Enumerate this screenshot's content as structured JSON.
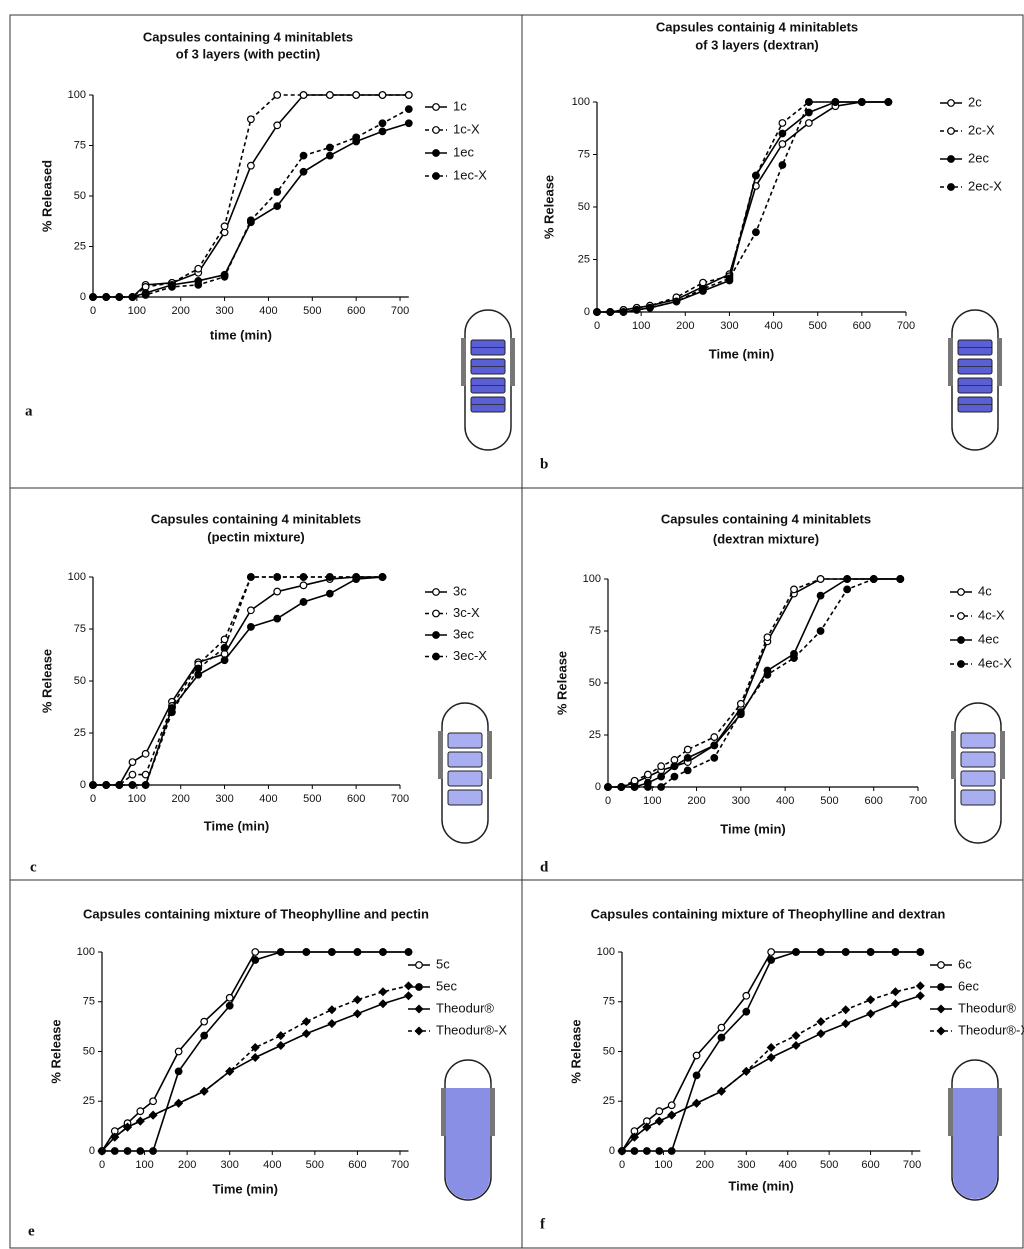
{
  "chart_data": [
    {
      "type": "line",
      "title": [
        "Capsules containing 4 minitablets",
        "of 3 layers (with pectin)"
      ],
      "x_label": "time (min)",
      "y_label": "% Released",
      "annotation": "a",
      "xlim": [
        0,
        720
      ],
      "ylim": [
        0,
        100
      ],
      "xticks": [
        0,
        100,
        200,
        300,
        400,
        500,
        600,
        700
      ],
      "yticks": [
        0,
        25,
        50,
        75,
        100
      ],
      "x": [
        0,
        30,
        60,
        90,
        120,
        180,
        240,
        300,
        360,
        420,
        480,
        540,
        600,
        660,
        720
      ],
      "series": [
        {
          "name": "1c",
          "color": "#000",
          "marker": "open-circle",
          "dashed": false,
          "values": [
            0,
            0,
            0,
            0,
            6,
            7,
            12,
            32,
            65,
            85,
            100,
            100,
            100,
            100,
            100
          ]
        },
        {
          "name": "1c-X",
          "color": "#000",
          "marker": "open-circle",
          "dashed": true,
          "values": [
            0,
            0,
            0,
            0,
            5,
            7,
            14,
            35,
            88,
            100,
            100,
            100,
            100,
            100,
            100
          ]
        },
        {
          "name": "1ec",
          "color": "#000",
          "marker": "filled-circle",
          "dashed": false,
          "values": [
            0,
            0,
            0,
            0,
            2,
            6,
            8,
            11,
            37,
            45,
            62,
            70,
            77,
            82,
            86
          ]
        },
        {
          "name": "1ec-X",
          "color": "#000",
          "marker": "filled-circle",
          "dashed": true,
          "values": [
            0,
            0,
            0,
            0,
            1,
            5,
            6,
            10,
            38,
            52,
            70,
            74,
            79,
            86,
            93
          ]
        }
      ]
    },
    {
      "type": "line",
      "title": [
        "Capsules containig 4 minitablets",
        "of 3 layers (dextran)"
      ],
      "x_label": "Time (min)",
      "y_label": "% Release",
      "annotation": "b",
      "xlim": [
        0,
        700
      ],
      "ylim": [
        0,
        100
      ],
      "xticks": [
        0,
        100,
        200,
        300,
        400,
        500,
        600,
        700
      ],
      "yticks": [
        0,
        25,
        50,
        75,
        100
      ],
      "x": [
        0,
        30,
        60,
        90,
        120,
        180,
        240,
        300,
        360,
        420,
        480,
        540,
        600,
        660
      ],
      "series": [
        {
          "name": "2c",
          "color": "#000",
          "marker": "open-circle",
          "dashed": false,
          "values": [
            0,
            0,
            1,
            2,
            3,
            6,
            12,
            18,
            60,
            80,
            90,
            98,
            100,
            100
          ]
        },
        {
          "name": "2c-X",
          "color": "#000",
          "marker": "open-circle",
          "dashed": true,
          "values": [
            0,
            0,
            1,
            2,
            3,
            7,
            14,
            17,
            65,
            90,
            100,
            100,
            100,
            100
          ]
        },
        {
          "name": "2ec",
          "color": "#000",
          "marker": "filled-circle",
          "dashed": false,
          "values": [
            0,
            0,
            0,
            1,
            2,
            5,
            10,
            15,
            65,
            85,
            95,
            100,
            100,
            100
          ]
        },
        {
          "name": "2ec-X",
          "color": "#000",
          "marker": "filled-circle",
          "dashed": true,
          "values": [
            0,
            0,
            0,
            1,
            2,
            5,
            11,
            16,
            38,
            70,
            100,
            100,
            100,
            100
          ]
        }
      ]
    },
    {
      "type": "line",
      "title": [
        "Capsules containing 4 minitablets",
        "(pectin mixture)"
      ],
      "x_label": "Time (min)",
      "y_label": "% Release",
      "annotation": "c",
      "xlim": [
        0,
        700
      ],
      "ylim": [
        0,
        100
      ],
      "xticks": [
        0,
        100,
        200,
        300,
        400,
        500,
        600,
        700
      ],
      "yticks": [
        0,
        25,
        50,
        75,
        100
      ],
      "x": [
        0,
        30,
        60,
        90,
        120,
        180,
        240,
        300,
        360,
        420,
        480,
        540,
        600,
        660
      ],
      "series": [
        {
          "name": "3c",
          "color": "#000",
          "marker": "open-circle",
          "dashed": false,
          "values": [
            0,
            0,
            0,
            11,
            15,
            40,
            59,
            63,
            84,
            93,
            96,
            99,
            100,
            100
          ]
        },
        {
          "name": "3c-X",
          "color": "#000",
          "marker": "open-circle",
          "dashed": true,
          "values": [
            0,
            0,
            0,
            5,
            5,
            38,
            58,
            70,
            100,
            100,
            100,
            100,
            100,
            100
          ]
        },
        {
          "name": "3ec",
          "color": "#000",
          "marker": "filled-circle",
          "dashed": false,
          "values": [
            0,
            0,
            0,
            0,
            0,
            37,
            53,
            60,
            76,
            80,
            88,
            92,
            99,
            100
          ]
        },
        {
          "name": "3ec-X",
          "color": "#000",
          "marker": "filled-circle",
          "dashed": true,
          "values": [
            0,
            0,
            0,
            0,
            0,
            35,
            56,
            66,
            100,
            100,
            100,
            100,
            100,
            100
          ]
        }
      ]
    },
    {
      "type": "line",
      "title": [
        "Capsules containing 4 minitablets",
        "(dextran mixture)"
      ],
      "x_label": "Time (min)",
      "y_label": "% Release",
      "annotation": "d",
      "xlim": [
        0,
        700
      ],
      "ylim": [
        0,
        100
      ],
      "xticks": [
        0,
        100,
        200,
        300,
        400,
        500,
        600,
        700
      ],
      "yticks": [
        0,
        25,
        50,
        75,
        100
      ],
      "x": [
        0,
        30,
        60,
        90,
        120,
        150,
        180,
        240,
        300,
        360,
        420,
        480,
        540,
        600,
        660
      ],
      "series": [
        {
          "name": "4c",
          "color": "#000",
          "marker": "open-circle",
          "dashed": false,
          "values": [
            0,
            0,
            2,
            5,
            8,
            10,
            12,
            20,
            38,
            70,
            93,
            100,
            100,
            100,
            100
          ]
        },
        {
          "name": "4c-X",
          "color": "#000",
          "marker": "open-circle",
          "dashed": true,
          "values": [
            0,
            0,
            3,
            6,
            10,
            13,
            18,
            24,
            40,
            72,
            95,
            100,
            100,
            100,
            100
          ]
        },
        {
          "name": "4ec",
          "color": "#000",
          "marker": "filled-circle",
          "dashed": false,
          "values": [
            0,
            0,
            0,
            2,
            5,
            10,
            14,
            20,
            35,
            56,
            64,
            92,
            100,
            100,
            100
          ]
        },
        {
          "name": "4ec-X",
          "color": "#000",
          "marker": "filled-circle",
          "dashed": true,
          "values": [
            0,
            0,
            0,
            0,
            0,
            5,
            8,
            14,
            36,
            54,
            62,
            75,
            95,
            100,
            100
          ]
        }
      ]
    },
    {
      "type": "line",
      "title": [
        "Capsules containing mixture of Theophylline and pectin"
      ],
      "x_label": "Time (min)",
      "y_label": "% Release",
      "annotation": "e",
      "xlim": [
        0,
        720
      ],
      "ylim": [
        0,
        100
      ],
      "xticks": [
        0,
        100,
        200,
        300,
        400,
        500,
        600,
        700
      ],
      "yticks": [
        0,
        25,
        50,
        75,
        100
      ],
      "x": [
        0,
        30,
        60,
        90,
        120,
        180,
        240,
        300,
        360,
        420,
        480,
        540,
        600,
        660,
        720
      ],
      "series": [
        {
          "name": "5c",
          "color": "#000",
          "marker": "open-circle",
          "dashed": false,
          "values": [
            0,
            10,
            14,
            20,
            25,
            50,
            65,
            77,
            100,
            100,
            100,
            100,
            100,
            100,
            100
          ]
        },
        {
          "name": "5ec",
          "color": "#000",
          "marker": "filled-circle",
          "dashed": false,
          "values": [
            0,
            0,
            0,
            0,
            0,
            40,
            58,
            73,
            96,
            100,
            100,
            100,
            100,
            100,
            100
          ]
        },
        {
          "name": "Theodur®",
          "color": "#000",
          "marker": "filled-diamond",
          "dashed": false,
          "values": [
            0,
            7,
            12,
            15,
            18,
            24,
            30,
            40,
            47,
            53,
            59,
            64,
            69,
            74,
            78
          ]
        },
        {
          "name": "Theodur®-X",
          "color": "#000",
          "marker": "filled-diamond",
          "dashed": true,
          "values": [
            0,
            7,
            12,
            15,
            18,
            24,
            30,
            40,
            52,
            58,
            65,
            71,
            76,
            80,
            83
          ]
        }
      ]
    },
    {
      "type": "line",
      "title": [
        "Capsules containing mixture of Theophylline and dextran"
      ],
      "x_label": "Time (min)",
      "y_label": "% Release",
      "annotation": "f",
      "xlim": [
        0,
        720
      ],
      "ylim": [
        0,
        100
      ],
      "xticks": [
        0,
        100,
        200,
        300,
        400,
        500,
        600,
        700
      ],
      "yticks": [
        0,
        25,
        50,
        75,
        100
      ],
      "x": [
        0,
        30,
        60,
        90,
        120,
        180,
        240,
        300,
        360,
        420,
        480,
        540,
        600,
        660,
        720
      ],
      "series": [
        {
          "name": "6c",
          "color": "#000",
          "marker": "open-circle",
          "dashed": false,
          "values": [
            0,
            10,
            15,
            20,
            23,
            48,
            62,
            78,
            100,
            100,
            100,
            100,
            100,
            100,
            100
          ]
        },
        {
          "name": "6ec",
          "color": "#000",
          "marker": "filled-circle",
          "dashed": false,
          "values": [
            0,
            0,
            0,
            0,
            0,
            38,
            57,
            70,
            96,
            100,
            100,
            100,
            100,
            100,
            100
          ]
        },
        {
          "name": "Theodur®",
          "color": "#000",
          "marker": "filled-diamond",
          "dashed": false,
          "values": [
            0,
            7,
            12,
            15,
            18,
            24,
            30,
            40,
            47,
            53,
            59,
            64,
            69,
            74,
            78
          ]
        },
        {
          "name": "Theodur®-X",
          "color": "#000",
          "marker": "filled-diamond",
          "dashed": true,
          "values": [
            0,
            7,
            12,
            15,
            18,
            24,
            30,
            40,
            52,
            58,
            65,
            71,
            76,
            80,
            83
          ]
        }
      ]
    }
  ]
}
